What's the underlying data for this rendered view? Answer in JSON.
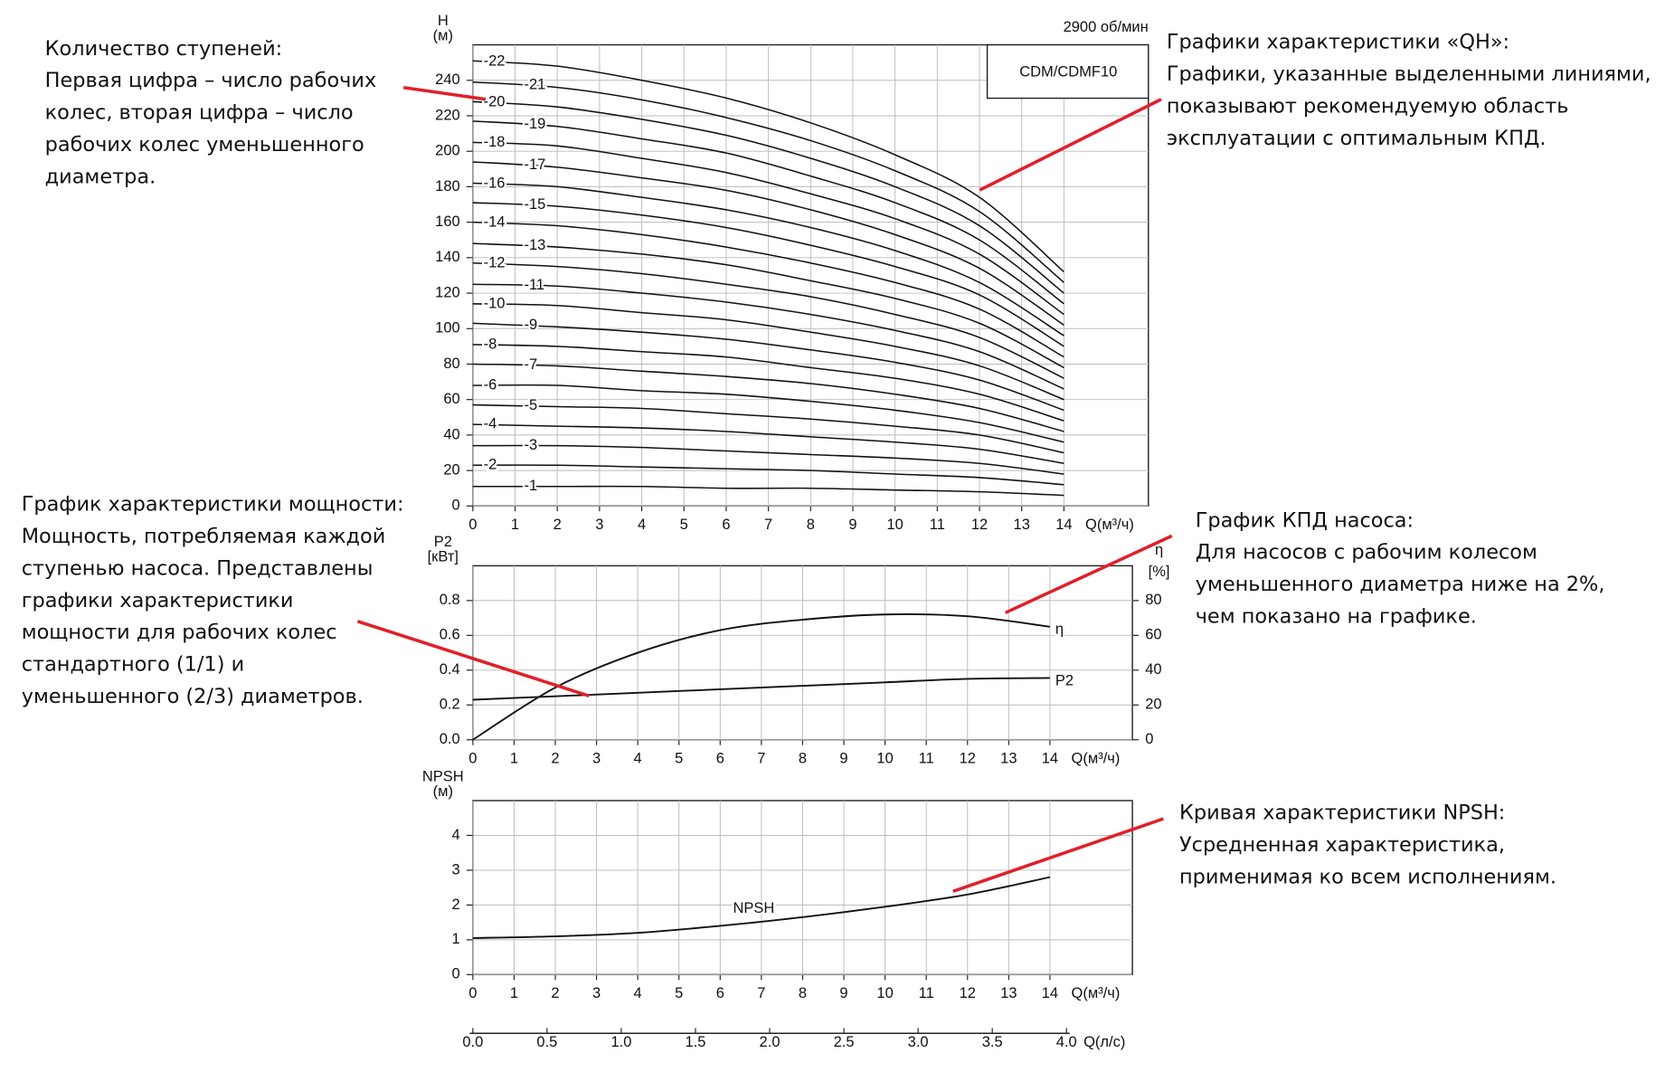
{
  "chart_data": [
    {
      "type": "line",
      "title": "CDM/CDMF10",
      "subtitle": "2900 об/мин",
      "ylabel": [
        "H",
        "(м)"
      ],
      "xlabel": "Q(м³/ч)",
      "x": [
        0,
        2,
        4,
        6,
        8,
        10,
        12,
        14
      ],
      "xlim": [
        0,
        16
      ],
      "xticks": [
        0,
        1,
        2,
        3,
        4,
        5,
        6,
        7,
        8,
        9,
        10,
        11,
        12,
        13,
        14
      ],
      "ylim": [
        0,
        260
      ],
      "yticks": [
        0,
        20,
        40,
        60,
        80,
        100,
        120,
        140,
        160,
        180,
        200,
        220,
        240
      ],
      "grid": true,
      "series": [
        {
          "name": "-22",
          "color": "#111",
          "values": [
            251,
            248,
            240,
            230,
            216,
            198,
            174,
            132
          ]
        },
        {
          "name": "-21",
          "color": "#111",
          "values": [
            239,
            236,
            229,
            219,
            206,
            189,
            166,
            126
          ]
        },
        {
          "name": "-20",
          "color": "#111",
          "values": [
            228,
            225,
            218,
            209,
            196,
            180,
            158,
            120
          ]
        },
        {
          "name": "-19",
          "color": "#111",
          "values": [
            217,
            214,
            207,
            199,
            186,
            171,
            150,
            114
          ]
        },
        {
          "name": "-18",
          "color": "#111",
          "values": [
            205,
            203,
            196,
            188,
            176,
            162,
            142,
            108
          ]
        },
        {
          "name": "-17",
          "color": "#111",
          "values": [
            194,
            191,
            185,
            178,
            167,
            153,
            134,
            102
          ]
        },
        {
          "name": "-16",
          "color": "#111",
          "values": [
            182,
            180,
            174,
            167,
            157,
            144,
            126,
            96
          ]
        },
        {
          "name": "-15",
          "color": "#111",
          "values": [
            171,
            169,
            164,
            157,
            147,
            135,
            119,
            90
          ]
        },
        {
          "name": "-14",
          "color": "#111",
          "values": [
            160,
            158,
            153,
            146,
            137,
            126,
            111,
            84
          ]
        },
        {
          "name": "-13",
          "color": "#111",
          "values": [
            148,
            146,
            142,
            136,
            127,
            117,
            103,
            78
          ]
        },
        {
          "name": "-12",
          "color": "#111",
          "values": [
            137,
            135,
            131,
            125,
            118,
            108,
            95,
            72
          ]
        },
        {
          "name": "-11",
          "color": "#111",
          "values": [
            125,
            124,
            120,
            115,
            108,
            99,
            87,
            66
          ]
        },
        {
          "name": "-10",
          "color": "#111",
          "values": [
            114,
            113,
            109,
            105,
            98,
            90,
            79,
            60
          ]
        },
        {
          "name": "-9",
          "color": "#111",
          "values": [
            103,
            101,
            98,
            94,
            88,
            81,
            71,
            54
          ]
        },
        {
          "name": "-8",
          "color": "#111",
          "values": [
            91,
            90,
            87,
            84,
            78,
            72,
            63,
            48
          ]
        },
        {
          "name": "-7",
          "color": "#111",
          "values": [
            80,
            79,
            76,
            73,
            69,
            63,
            55,
            42
          ]
        },
        {
          "name": "-6",
          "color": "#111",
          "values": [
            68,
            68,
            65,
            63,
            59,
            54,
            47,
            36
          ]
        },
        {
          "name": "-5",
          "color": "#111",
          "values": [
            57,
            56,
            55,
            52,
            49,
            45,
            40,
            30
          ]
        },
        {
          "name": "-4",
          "color": "#111",
          "values": [
            46,
            45,
            44,
            42,
            39,
            36,
            32,
            24
          ]
        },
        {
          "name": "-3",
          "color": "#111",
          "values": [
            34,
            34,
            33,
            31,
            29,
            27,
            24,
            18
          ]
        },
        {
          "name": "-2",
          "color": "#111",
          "values": [
            23,
            23,
            22,
            21,
            20,
            18,
            16,
            12
          ]
        },
        {
          "name": "-1",
          "color": "#111",
          "values": [
            11,
            11,
            11,
            10,
            10,
            9,
            8,
            6
          ]
        }
      ]
    },
    {
      "type": "line",
      "ylabel": [
        "P2",
        "[кВт]"
      ],
      "y2label": [
        "η",
        "[%]"
      ],
      "xlabel": "Q(м³/ч)",
      "x": [
        0,
        2,
        4,
        6,
        8,
        10,
        12,
        14
      ],
      "xlim": [
        0,
        16
      ],
      "xticks": [
        0,
        1,
        2,
        3,
        4,
        5,
        6,
        7,
        8,
        9,
        10,
        11,
        12,
        13,
        14
      ],
      "ylim": [
        0,
        1
      ],
      "yticks": [
        {
          "value": 0,
          "label": "0.0"
        },
        0.2,
        0.4,
        0.6,
        0.8
      ],
      "y2lim": [
        0,
        100
      ],
      "y2ticks": [
        0,
        20,
        40,
        60,
        80
      ],
      "grid": true,
      "series": [
        {
          "name": "η",
          "axis": "y2",
          "color": "#111",
          "values": [
            0,
            30,
            50,
            63,
            69,
            72,
            71,
            65
          ]
        },
        {
          "name": "P2",
          "color": "#111",
          "values": [
            0.23,
            0.25,
            0.27,
            0.29,
            0.31,
            0.33,
            0.35,
            0.355
          ]
        }
      ]
    },
    {
      "type": "line",
      "ylabel": [
        "NPSH",
        "(м)"
      ],
      "xlabel": "Q(м³/ч)",
      "x2label": "Q(л/с)",
      "x": [
        0,
        2,
        4,
        6,
        8,
        10,
        12,
        14
      ],
      "xlim": [
        0,
        16
      ],
      "xticks": [
        0,
        1,
        2,
        3,
        4,
        5,
        6,
        7,
        8,
        9,
        10,
        11,
        12,
        13,
        14
      ],
      "x2lim": [
        0,
        4.444
      ],
      "x2ticks": [
        {
          "value": 0,
          "label": "0.0"
        },
        0.5,
        {
          "value": 1,
          "label": "1.0"
        },
        1.5,
        {
          "value": 2,
          "label": "2.0"
        },
        2.5,
        {
          "value": 3,
          "label": "3.0"
        },
        3.5,
        {
          "value": 4,
          "label": "4.0"
        }
      ],
      "ylim": [
        0,
        5
      ],
      "yticks": [
        0,
        1,
        2,
        3,
        4
      ],
      "grid": true,
      "series": [
        {
          "name": "NPSH",
          "color": "#111",
          "values": [
            1.05,
            1.1,
            1.2,
            1.4,
            1.65,
            1.95,
            2.3,
            2.8
          ]
        }
      ]
    }
  ],
  "annotations": [
    {
      "lines": [
        "Количество ступеней:",
        "Первая цифра – число рабочих",
        "колес, вторая цифра – число",
        "рабочих колес уменьшенного",
        "диаметра."
      ]
    },
    {
      "lines": [
        "Графики характеристики «QH»:",
        "Графики, указанные выделенными линиями,",
        "показывают рекомендуемую область",
        "эксплуатации с оптимальным КПД."
      ]
    },
    {
      "lines": [
        "График характеристики мощности:",
        "Мощность, потребляемая каждой",
        "ступенью насоса. Представлены",
        "графики характеристики",
        "мощности для рабочих колес",
        "стандартного (1/1) и",
        "уменьшенного (2/3) диаметров."
      ]
    },
    {
      "lines": [
        "График КПД насоса:",
        "Для насосов с рабочим колесом",
        "уменьшенного диаметра ниже на 2%,",
        "чем показано на графике."
      ]
    },
    {
      "lines": [
        "Кривая характеристики NPSH:",
        "Усредненная характеристика,",
        "применимая ко всем исполнениям."
      ]
    }
  ]
}
